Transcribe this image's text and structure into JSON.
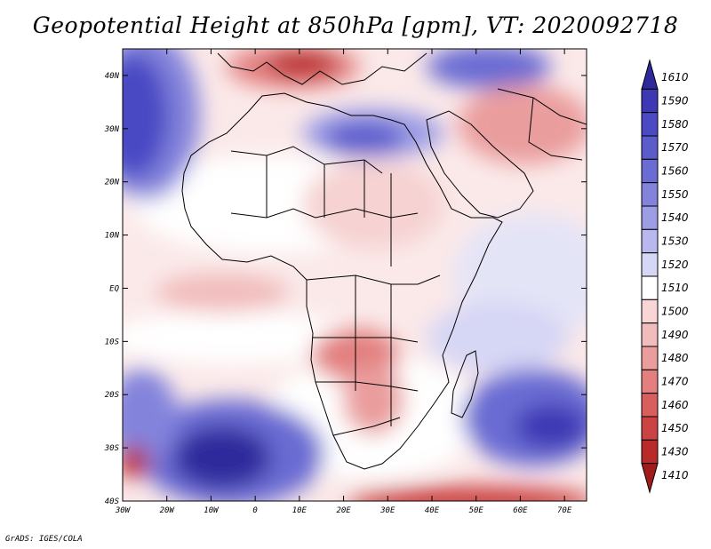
{
  "title": "Geopotential Height at 850hPa [gpm], VT: 2020092718",
  "footer": "GrADS: IGES/COLA",
  "map": {
    "lat_labels": [
      "40N",
      "30N",
      "20N",
      "10N",
      "EQ",
      "10S",
      "20S",
      "30S",
      "40S"
    ],
    "lon_labels": [
      "30W",
      "20W",
      "10W",
      "0",
      "10E",
      "20E",
      "30E",
      "40E",
      "50E",
      "60E",
      "70E"
    ],
    "extent": {
      "lon_min": -30,
      "lon_max": 75,
      "lat_min": -40,
      "lat_max": 45
    }
  },
  "colorbar": {
    "labels": [
      "1610",
      "1590",
      "1580",
      "1570",
      "1560",
      "1550",
      "1540",
      "1530",
      "1520",
      "1510",
      "1500",
      "1490",
      "1480",
      "1470",
      "1460",
      "1450",
      "1430",
      "1410"
    ],
    "colors": [
      "#2f2a9c",
      "#3d39b4",
      "#4a4ac4",
      "#5b5bcc",
      "#6b6cd3",
      "#8383dc",
      "#9d9de5",
      "#b8b8ee",
      "#d6d6f5",
      "#ffffff",
      "#f8d6d6",
      "#f1bcbc",
      "#ea9d9d",
      "#e37f7f",
      "#d95f5f",
      "#cc4343",
      "#b92b2b",
      "#a01c1c"
    ]
  }
}
